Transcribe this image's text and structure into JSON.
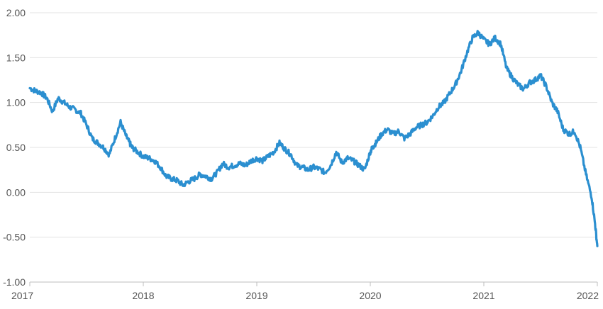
{
  "chart_data": {
    "type": "line",
    "title": "",
    "xlabel": "",
    "ylabel": "",
    "ylim": [
      -1.0,
      2.0
    ],
    "xlim": [
      2017.0,
      2022.0
    ],
    "grid": "horizontal",
    "legend": "none",
    "y_ticks": [
      "2.00",
      "1.50",
      "1.00",
      "0.50",
      "0.00",
      "-0.50",
      "-1.00"
    ],
    "x_ticks": [
      "2017",
      "2018",
      "2019",
      "2020",
      "2021",
      "2022"
    ],
    "line_color": "#2b8fd0",
    "series": [
      {
        "x": [
          2017.0,
          2017.05,
          2017.1,
          2017.15,
          2017.2,
          2017.25,
          2017.3,
          2017.35,
          2017.4,
          2017.45,
          2017.5,
          2017.55,
          2017.6,
          2017.65,
          2017.7,
          2017.75,
          2017.8,
          2017.85,
          2017.88,
          2017.9,
          2017.95,
          2018.0,
          2018.05,
          2018.1,
          2018.15,
          2018.2,
          2018.25,
          2018.3,
          2018.35,
          2018.4,
          2018.45,
          2018.5,
          2018.55,
          2018.6,
          2018.65,
          2018.7,
          2018.75,
          2018.8,
          2018.85,
          2018.9,
          2018.95,
          2019.0,
          2019.05,
          2019.1,
          2019.15,
          2019.2,
          2019.25,
          2019.3,
          2019.35,
          2019.4,
          2019.45,
          2019.5,
          2019.55,
          2019.6,
          2019.65,
          2019.7,
          2019.75,
          2019.8,
          2019.85,
          2019.9,
          2019.95,
          2020.0,
          2020.02,
          2020.05,
          2020.1,
          2020.15,
          2020.2,
          2020.25,
          2020.3,
          2020.35,
          2020.4,
          2020.45,
          2020.5,
          2020.55,
          2020.6,
          2020.65,
          2020.7,
          2020.75,
          2020.8,
          2020.85,
          2020.9,
          2020.95,
          2021.0,
          2021.05,
          2021.1,
          2021.15,
          2021.2,
          2021.25,
          2021.3,
          2021.35,
          2021.4,
          2021.45,
          2021.5,
          2021.55,
          2021.6,
          2021.65,
          2021.7,
          2021.75,
          2021.8,
          2021.85,
          2021.9,
          2021.95,
          2021.98,
          2022.0
        ],
        "values": [
          1.16,
          1.13,
          1.11,
          1.05,
          0.9,
          1.05,
          1.0,
          0.95,
          0.92,
          0.88,
          0.75,
          0.6,
          0.55,
          0.5,
          0.42,
          0.6,
          0.78,
          0.62,
          0.55,
          0.5,
          0.45,
          0.4,
          0.38,
          0.35,
          0.28,
          0.18,
          0.15,
          0.13,
          0.08,
          0.12,
          0.15,
          0.2,
          0.18,
          0.15,
          0.22,
          0.32,
          0.28,
          0.3,
          0.32,
          0.3,
          0.35,
          0.38,
          0.35,
          0.4,
          0.45,
          0.55,
          0.48,
          0.42,
          0.3,
          0.28,
          0.25,
          0.28,
          0.26,
          0.22,
          0.3,
          0.45,
          0.33,
          0.38,
          0.35,
          0.3,
          0.25,
          0.45,
          0.5,
          0.55,
          0.65,
          0.7,
          0.65,
          0.68,
          0.6,
          0.65,
          0.72,
          0.75,
          0.78,
          0.85,
          0.95,
          1.0,
          1.1,
          1.2,
          1.35,
          1.55,
          1.72,
          1.78,
          1.7,
          1.65,
          1.72,
          1.65,
          1.38,
          1.28,
          1.2,
          1.15,
          1.22,
          1.25,
          1.3,
          1.18,
          1.0,
          0.9,
          0.7,
          0.65,
          0.68,
          0.5,
          0.2,
          -0.05,
          -0.35,
          -0.6
        ]
      }
    ]
  }
}
